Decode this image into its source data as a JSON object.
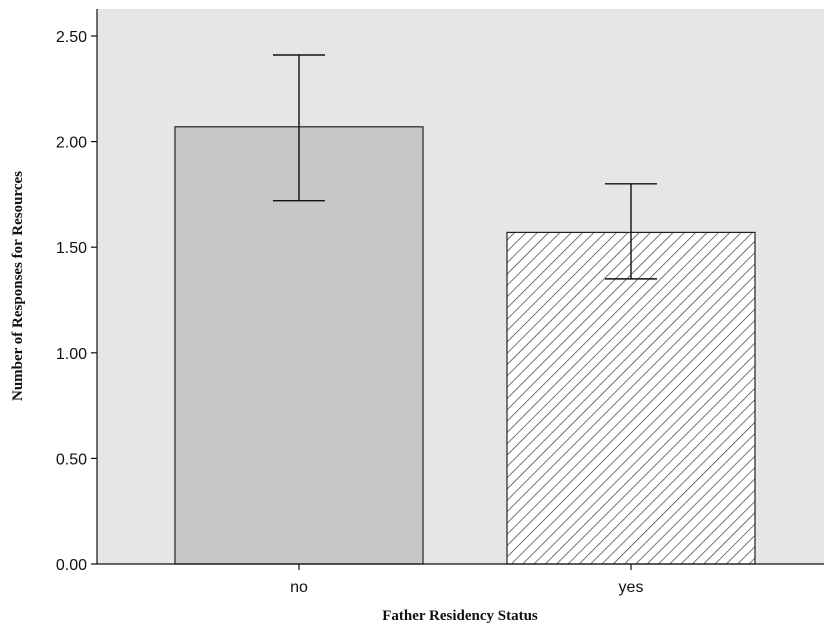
{
  "chart_data": {
    "type": "bar",
    "categories": [
      "no",
      "yes"
    ],
    "values": [
      2.07,
      1.57
    ],
    "error_bars": [
      {
        "low": 1.72,
        "high": 2.41
      },
      {
        "low": 1.35,
        "high": 1.8
      }
    ],
    "xlabel": "Father Residency Status",
    "ylabel": "Number of Responses for Resources",
    "ylim": [
      0,
      2.5
    ],
    "yticks": [
      "0.00",
      "0.50",
      "1.00",
      "1.50",
      "2.00",
      "2.50"
    ],
    "grid": false,
    "bar_styles": [
      "solid",
      "hatched"
    ],
    "colors": {
      "plot_background": "#e6e6e8",
      "bar_fill": "#c6c7c9",
      "hatch_line": "#3a3a3a",
      "axis": "#111111"
    }
  }
}
